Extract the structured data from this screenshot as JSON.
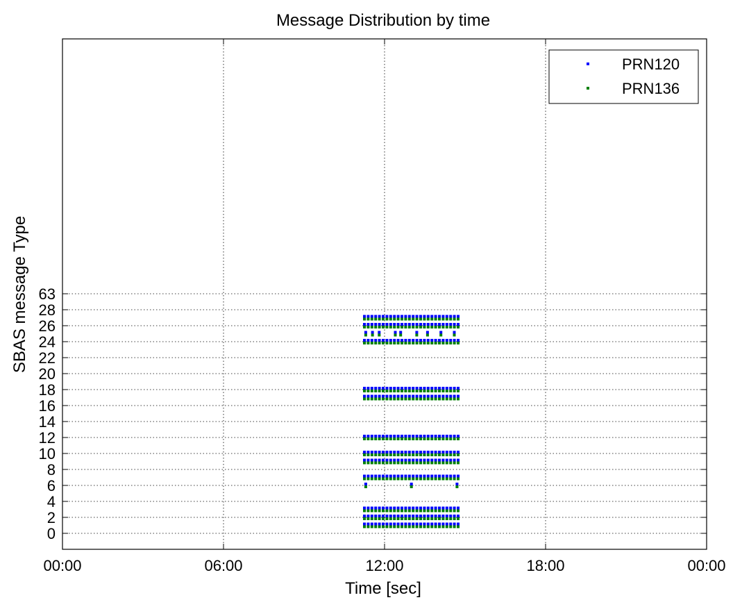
{
  "chart_data": {
    "type": "scatter",
    "title": "Message Distribution by time",
    "xlabel": "Time [sec]",
    "ylabel": "SBAS message Type",
    "x_tick_labels": [
      "00:00",
      "06:00",
      "12:00",
      "18:00",
      "00:00"
    ],
    "x_ticks_hours": [
      0,
      6,
      12,
      18,
      24
    ],
    "xlim_hours": [
      0,
      24
    ],
    "y_tick_labels": [
      "0",
      "2",
      "4",
      "6",
      "8",
      "10",
      "12",
      "14",
      "16",
      "18",
      "20",
      "22",
      "24",
      "26",
      "28",
      "63"
    ],
    "grid": true,
    "legend_position": "top-right",
    "x_range_hours": {
      "start": 11.25,
      "end": 14.75
    },
    "series": [
      {
        "name": "PRN120",
        "color": "#0000ff",
        "continuous_message_types": [
          1,
          2,
          3,
          7,
          9,
          10,
          12,
          17,
          18,
          24,
          26,
          27
        ],
        "sparse_points": [
          {
            "type": 6,
            "times_hours": [
              11.3,
              13.0,
              14.7
            ]
          },
          {
            "type": 25,
            "times_hours": [
              11.3,
              11.55,
              11.8,
              12.4,
              12.6,
              13.2,
              13.6,
              14.1,
              14.6
            ]
          }
        ]
      },
      {
        "name": "PRN136",
        "color": "#008000",
        "continuous_message_types": [
          1,
          2,
          3,
          7,
          9,
          10,
          12,
          17,
          18,
          24,
          26,
          27
        ],
        "sparse_points": [
          {
            "type": 6,
            "times_hours": [
              11.3,
              13.0,
              14.7
            ]
          },
          {
            "type": 25,
            "times_hours": [
              11.3,
              11.55,
              11.8,
              12.4,
              12.6,
              13.2,
              13.6,
              14.1,
              14.6
            ]
          }
        ]
      }
    ]
  }
}
